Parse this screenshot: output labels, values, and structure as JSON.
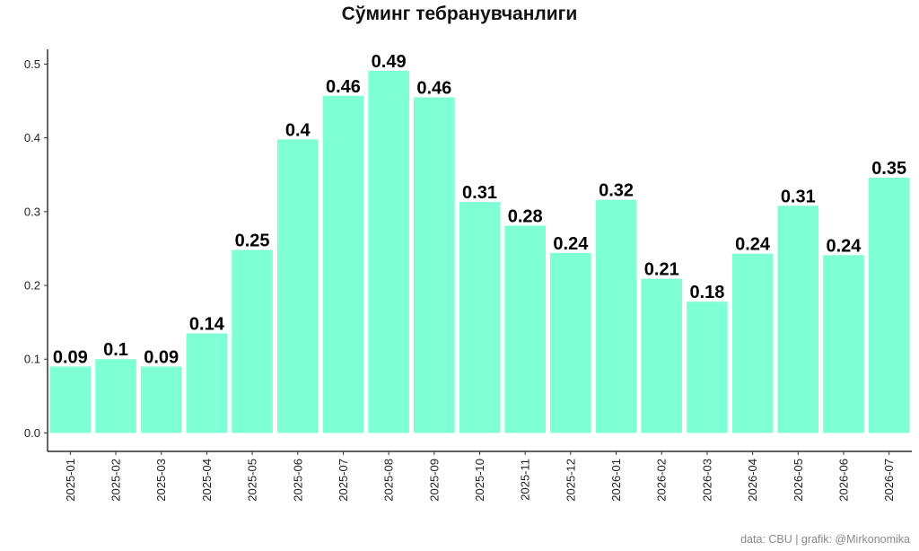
{
  "chart_data": {
    "type": "bar",
    "title": "Сўминг тебранувчанлиги",
    "xlabel": "",
    "ylabel": "",
    "categories": [
      "2025-01",
      "2025-02",
      "2025-03",
      "2025-04",
      "2025-05",
      "2025-06",
      "2025-07",
      "2025-08",
      "2025-09",
      "2025-10",
      "2025-11",
      "2025-12",
      "2026-01",
      "2026-02",
      "2026-03",
      "2026-04",
      "2026-05",
      "2026-06",
      "2026-07"
    ],
    "values": [
      0.09,
      0.1,
      0.09,
      0.135,
      0.248,
      0.398,
      0.457,
      0.491,
      0.455,
      0.313,
      0.281,
      0.244,
      0.316,
      0.209,
      0.178,
      0.243,
      0.308,
      0.241,
      0.346
    ],
    "data_labels": [
      "0.09",
      "0.1",
      "0.09",
      "0.14",
      "0.25",
      "0.4",
      "0.46",
      "0.49",
      "0.46",
      "0.31",
      "0.28",
      "0.24",
      "0.32",
      "0.21",
      "0.18",
      "0.24",
      "0.31",
      "0.24",
      "0.35"
    ],
    "y_ticks": [
      {
        "value": 0.0,
        "label": "0.0"
      },
      {
        "value": 0.1,
        "label": "0.1"
      },
      {
        "value": 0.2,
        "label": "0.2"
      },
      {
        "value": 0.3,
        "label": "0.3"
      },
      {
        "value": 0.4,
        "label": "0.4"
      },
      {
        "value": 0.5,
        "label": "0.5"
      }
    ],
    "ylim": [
      -0.025,
      0.52
    ],
    "grid": false,
    "bar_color": "#7fffd4"
  },
  "caption": "data: CBU | grafik: @Mirkonomika"
}
